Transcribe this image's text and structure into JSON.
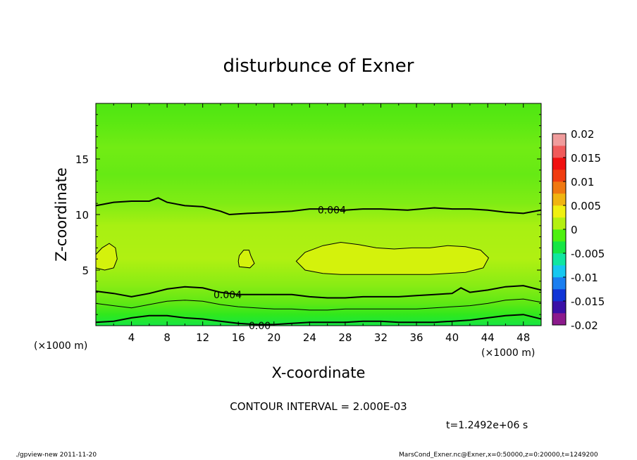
{
  "chart_data": {
    "type": "contour",
    "title": "disturbunce of Exner",
    "xlabel": "X-coordinate",
    "ylabel": "Z-coordinate",
    "x_unit": "(×1000 m)",
    "y_unit": "(×1000 m)",
    "xlim": [
      0,
      50
    ],
    "ylim": [
      0,
      20
    ],
    "xticks": [
      "4",
      "8",
      "12",
      "16",
      "20",
      "24",
      "28",
      "32",
      "36",
      "40",
      "44",
      "48"
    ],
    "yticks": [
      "5",
      "10",
      "15"
    ],
    "contour_interval_text": "CONTOUR INTERVAL = 2.000E-03",
    "time_text": "t=1.2492e+06 s",
    "colorbar": {
      "levels": [
        "0.02",
        "0.015",
        "0.01",
        "0.005",
        "0",
        "-0.005",
        "-0.01",
        "-0.015",
        "-0.02"
      ],
      "colors": [
        "#8c1a8c",
        "#3a10a6",
        "#1034d6",
        "#1a7ef0",
        "#16c8f0",
        "#10e6a0",
        "#16e644",
        "#4ef010",
        "#b4f010",
        "#f0f010",
        "#f0b410",
        "#f07810",
        "#f03c10",
        "#f01010",
        "#f05a5a",
        "#f09c9c"
      ]
    },
    "field_notes": "field mostly ~0.002–0.005 (yellow-green); closed 0.006 regions near z≈6",
    "contour_labels": [
      "0.004",
      "0.004",
      "0.00"
    ],
    "contours": [
      {
        "value": 0.004,
        "label": "0.004",
        "points": [
          [
            0,
            10.8
          ],
          [
            2,
            11.1
          ],
          [
            4,
            11.2
          ],
          [
            6,
            11.2
          ],
          [
            7,
            11.5
          ],
          [
            8,
            11.1
          ],
          [
            10,
            10.8
          ],
          [
            12,
            10.7
          ],
          [
            14,
            10.3
          ],
          [
            15,
            10.0
          ],
          [
            17,
            10.1
          ],
          [
            20,
            10.2
          ],
          [
            22,
            10.3
          ],
          [
            24,
            10.5
          ],
          [
            26,
            10.5
          ],
          [
            28,
            10.4
          ],
          [
            30,
            10.5
          ],
          [
            32,
            10.5
          ],
          [
            35,
            10.4
          ],
          [
            38,
            10.6
          ],
          [
            40,
            10.5
          ],
          [
            42,
            10.5
          ],
          [
            44,
            10.4
          ],
          [
            46,
            10.2
          ],
          [
            48,
            10.1
          ],
          [
            50,
            10.4
          ]
        ]
      },
      {
        "value": 0.004,
        "label": "0.004",
        "points": [
          [
            0,
            3.1
          ],
          [
            2,
            2.9
          ],
          [
            4,
            2.6
          ],
          [
            6,
            2.9
          ],
          [
            8,
            3.3
          ],
          [
            10,
            3.5
          ],
          [
            12,
            3.4
          ],
          [
            14,
            3.0
          ],
          [
            16,
            2.8
          ],
          [
            18,
            2.8
          ],
          [
            20,
            2.8
          ],
          [
            22,
            2.8
          ],
          [
            24,
            2.6
          ],
          [
            26,
            2.5
          ],
          [
            28,
            2.5
          ],
          [
            30,
            2.6
          ],
          [
            32,
            2.6
          ],
          [
            34,
            2.6
          ],
          [
            36,
            2.7
          ],
          [
            38,
            2.8
          ],
          [
            40,
            2.9
          ],
          [
            41,
            3.4
          ],
          [
            42,
            3.0
          ],
          [
            44,
            3.2
          ],
          [
            46,
            3.5
          ],
          [
            48,
            3.6
          ],
          [
            50,
            3.2
          ]
        ]
      },
      {
        "value": 0.002,
        "label": "",
        "points": [
          [
            0,
            2.0
          ],
          [
            2,
            1.8
          ],
          [
            4,
            1.6
          ],
          [
            6,
            1.9
          ],
          [
            8,
            2.2
          ],
          [
            10,
            2.3
          ],
          [
            12,
            2.2
          ],
          [
            14,
            1.9
          ],
          [
            16,
            1.7
          ],
          [
            18,
            1.6
          ],
          [
            20,
            1.5
          ],
          [
            22,
            1.5
          ],
          [
            24,
            1.4
          ],
          [
            26,
            1.4
          ],
          [
            28,
            1.5
          ],
          [
            30,
            1.5
          ],
          [
            32,
            1.5
          ],
          [
            34,
            1.5
          ],
          [
            36,
            1.5
          ],
          [
            38,
            1.6
          ],
          [
            40,
            1.7
          ],
          [
            42,
            1.8
          ],
          [
            44,
            2.0
          ],
          [
            46,
            2.3
          ],
          [
            48,
            2.4
          ],
          [
            50,
            2.1
          ]
        ]
      },
      {
        "value": 0.0,
        "label": "0.00",
        "points": [
          [
            0,
            0.3
          ],
          [
            2,
            0.4
          ],
          [
            4,
            0.7
          ],
          [
            6,
            0.9
          ],
          [
            8,
            0.9
          ],
          [
            10,
            0.7
          ],
          [
            12,
            0.6
          ],
          [
            14,
            0.4
          ],
          [
            16,
            0.2
          ],
          [
            18,
            0.1
          ],
          [
            20,
            0.1
          ],
          [
            22,
            0.2
          ],
          [
            24,
            0.3
          ],
          [
            26,
            0.3
          ],
          [
            28,
            0.3
          ],
          [
            30,
            0.4
          ],
          [
            32,
            0.4
          ],
          [
            34,
            0.3
          ],
          [
            36,
            0.3
          ],
          [
            38,
            0.3
          ],
          [
            40,
            0.4
          ],
          [
            42,
            0.5
          ],
          [
            44,
            0.7
          ],
          [
            46,
            0.9
          ],
          [
            48,
            1.0
          ],
          [
            50,
            0.6
          ]
        ]
      },
      {
        "value": 0.006,
        "label": "",
        "closed": true,
        "points": [
          [
            0,
            5.2
          ],
          [
            1,
            5.0
          ],
          [
            2,
            5.2
          ],
          [
            2.4,
            6.0
          ],
          [
            2.2,
            7.0
          ],
          [
            1.5,
            7.4
          ],
          [
            0.7,
            7.0
          ],
          [
            0,
            6.4
          ]
        ]
      },
      {
        "value": 0.006,
        "label": "",
        "closed": true,
        "points": [
          [
            16.1,
            5.3
          ],
          [
            17.3,
            5.2
          ],
          [
            17.8,
            5.6
          ],
          [
            17.4,
            6.3
          ],
          [
            17.2,
            6.8
          ],
          [
            16.6,
            6.8
          ],
          [
            16.1,
            6.3
          ],
          [
            16.0,
            5.8
          ]
        ]
      },
      {
        "value": 0.006,
        "label": "",
        "closed": true,
        "points": [
          [
            22.5,
            5.8
          ],
          [
            23.5,
            6.6
          ],
          [
            25.5,
            7.2
          ],
          [
            27.5,
            7.5
          ],
          [
            29.5,
            7.3
          ],
          [
            31.5,
            7.0
          ],
          [
            33.5,
            6.9
          ],
          [
            35.5,
            7.0
          ],
          [
            37.5,
            7.0
          ],
          [
            39.5,
            7.2
          ],
          [
            41.5,
            7.1
          ],
          [
            43.2,
            6.8
          ],
          [
            44.1,
            6.1
          ],
          [
            43.5,
            5.2
          ],
          [
            41.5,
            4.8
          ],
          [
            39.5,
            4.7
          ],
          [
            37.5,
            4.6
          ],
          [
            35.5,
            4.6
          ],
          [
            33.5,
            4.6
          ],
          [
            31.5,
            4.6
          ],
          [
            29.5,
            4.6
          ],
          [
            27.5,
            4.6
          ],
          [
            25.5,
            4.7
          ],
          [
            23.5,
            5.0
          ]
        ]
      }
    ]
  },
  "footer": {
    "left": "./gpview-new  2011-11-20",
    "right": "MarsCond_Exner.nc@Exner,x=0:50000,z=0:20000,t=1249200"
  }
}
